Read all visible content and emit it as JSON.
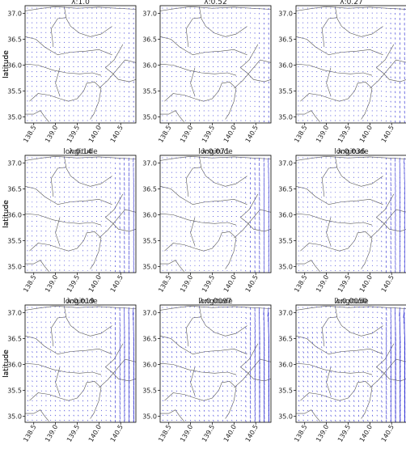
{
  "chart_data": {
    "type": "quiver",
    "layout": "3x3 grid of map panels",
    "xlabel": "longitude",
    "ylabel": "latitude",
    "xlim": [
      138.3,
      140.85
    ],
    "ylim": [
      34.88,
      37.15
    ],
    "xticks": [
      138.5,
      139.0,
      139.5,
      140.0,
      140.5
    ],
    "xtick_labels": [
      "138.5",
      "139.0",
      "139.5",
      "140.0",
      "140.5"
    ],
    "yticks": [
      35.0,
      35.5,
      36.0,
      36.5,
      37.0
    ],
    "ytick_labels": [
      "35.0",
      "35.5",
      "36.0",
      "36.5",
      "37.0"
    ],
    "arrow_color": "#3b3bd6",
    "coast_color": "#555555",
    "panels": [
      {
        "title": "λ:1.0",
        "scale": 0.12
      },
      {
        "title": "λ:0.52",
        "scale": 0.16
      },
      {
        "title": "λ:0.27",
        "scale": 0.22
      },
      {
        "title": "λ:0.14",
        "scale": 0.38
      },
      {
        "title": "λ:0.071",
        "scale": 0.45
      },
      {
        "title": "λ:0.036",
        "scale": 0.55
      },
      {
        "title": "λ:0.019",
        "scale": 0.7
      },
      {
        "title": "λ:0.0097",
        "scale": 0.85
      },
      {
        "title": "λ:0.0050",
        "scale": 1.0
      }
    ]
  }
}
